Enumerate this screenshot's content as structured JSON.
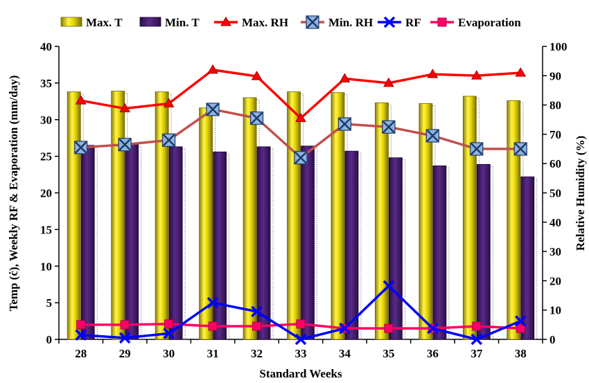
{
  "chart_data": {
    "type": "bar",
    "xlabel": "Standard Weeks",
    "ylabel_left": "Temp (ċ), Weekly RF & Evaporation (mm/day)",
    "ylabel_right": "Relative Humidity (%)",
    "categories": [
      "28",
      "29",
      "30",
      "31",
      "32",
      "33",
      "34",
      "35",
      "36",
      "37",
      "38"
    ],
    "ylim_left": [
      0,
      40
    ],
    "yticks_left": [
      "0",
      "5",
      "10",
      "15",
      "20",
      "25",
      "30",
      "35",
      "40"
    ],
    "ylim_right": [
      0,
      100
    ],
    "yticks_right": [
      "0",
      "10",
      "20",
      "30",
      "40",
      "50",
      "60",
      "70",
      "80",
      "90",
      "100"
    ],
    "grid": false,
    "legend_position": "top",
    "series": [
      {
        "name": "Max. T",
        "kind": "bar",
        "axis": "left",
        "color": "#e6d800",
        "values": [
          33.8,
          33.9,
          33.8,
          31.6,
          33.0,
          33.8,
          33.7,
          32.3,
          32.2,
          33.2,
          32.6
        ]
      },
      {
        "name": "Min. T",
        "kind": "bar",
        "axis": "left",
        "color": "#4b1f73",
        "values": [
          26.5,
          26.6,
          26.3,
          25.6,
          26.3,
          26.4,
          25.7,
          24.8,
          23.7,
          23.9,
          22.2
        ]
      },
      {
        "name": "Max. RH",
        "kind": "line",
        "axis": "right",
        "color": "#ff0000",
        "marker": "triangle",
        "values": [
          81.5,
          78.8,
          80.5,
          92.0,
          89.8,
          75.5,
          89.0,
          87.5,
          90.5,
          90.0,
          91.0
        ]
      },
      {
        "name": "Min. RH",
        "kind": "line",
        "axis": "right",
        "color": "#c0504d",
        "marker": "x-square",
        "values": [
          65.5,
          66.5,
          68.0,
          78.5,
          75.5,
          62.0,
          73.5,
          72.5,
          69.5,
          65.0,
          65.0
        ]
      },
      {
        "name": "RF",
        "kind": "line",
        "axis": "left",
        "color": "#0000ff",
        "marker": "x",
        "values": [
          0.6,
          0.2,
          0.8,
          5.0,
          3.8,
          0.0,
          1.5,
          7.3,
          1.5,
          0.0,
          2.5
        ]
      },
      {
        "name": "Evaporation",
        "kind": "line",
        "axis": "left",
        "color": "#ff0066",
        "marker": "square",
        "values": [
          2.0,
          2.0,
          2.1,
          1.8,
          1.8,
          2.1,
          1.5,
          1.5,
          1.5,
          1.8,
          1.5
        ]
      }
    ]
  }
}
